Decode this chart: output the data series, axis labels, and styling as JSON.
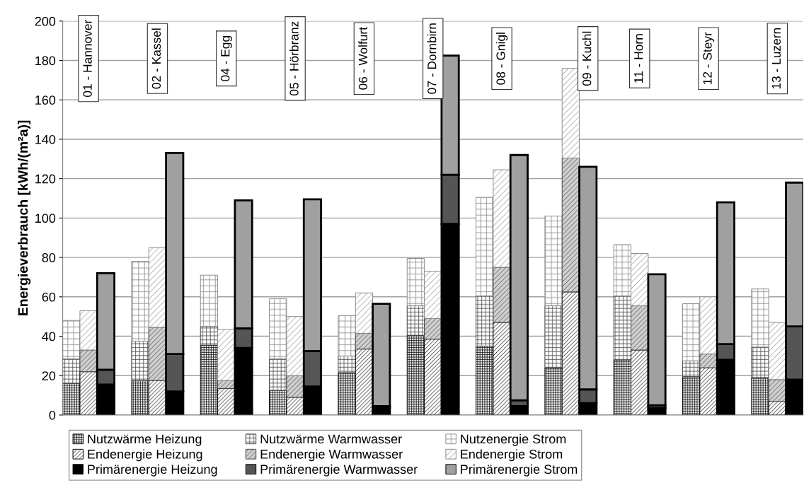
{
  "chart_data": {
    "type": "bar",
    "stacked": true,
    "ylabel": "Energieverbrauch [kWh/(m²a)]",
    "categories": [
      null,
      "01 - Hannover",
      null,
      null,
      null,
      "02 - Kassel",
      null,
      null,
      null,
      "04 - Egg",
      null,
      null,
      null,
      "05 - Hörbranz",
      null,
      null,
      null,
      "06 - Wolfurt",
      null,
      null,
      null,
      "07 - Dornbirn",
      null,
      null,
      null,
      "08 - Gnigl",
      null,
      null,
      null,
      null,
      "09 - Kuchl",
      null,
      null,
      "11 - Horn",
      null,
      null,
      null,
      "12 - Steyr",
      null,
      null,
      null,
      "13 - Luzern",
      null
    ],
    "ylim": [
      0,
      200
    ],
    "yticks": [
      0,
      20,
      40,
      60,
      80,
      100,
      120,
      140,
      160,
      180,
      200
    ],
    "grid": "y",
    "legend": "bottom",
    "series": [
      {
        "name": "Nutzwärme Heizung",
        "color": "#000000",
        "values": [
          16,
          null,
          null,
          null,
          17.5,
          null,
          null,
          null,
          35.5,
          null,
          null,
          null,
          12.5,
          null,
          null,
          null,
          21.5,
          null,
          null,
          null,
          40.5,
          null,
          null,
          null,
          35,
          null,
          null,
          null,
          24,
          null,
          null,
          null,
          28,
          null,
          null,
          null,
          19.5,
          null,
          null,
          null,
          19,
          null,
          null
        ]
      },
      {
        "name": "Nutzwärme Warmwasser",
        "color": "#444444",
        "values": [
          12.5,
          null,
          null,
          null,
          20,
          null,
          null,
          null,
          9.5,
          null,
          null,
          null,
          16,
          null,
          null,
          null,
          8.5,
          null,
          null,
          null,
          15,
          null,
          null,
          null,
          25.5,
          null,
          null,
          null,
          31.5,
          null,
          null,
          null,
          32.5,
          null,
          null,
          null,
          8,
          null,
          null,
          null,
          15.5,
          null,
          null
        ]
      },
      {
        "name": "Nutzenergie Strom",
        "color": "#888888",
        "values": [
          19.5,
          null,
          null,
          null,
          40.5,
          null,
          null,
          null,
          26,
          null,
          null,
          null,
          30.5,
          null,
          null,
          null,
          20.5,
          null,
          null,
          null,
          24,
          null,
          null,
          null,
          50,
          null,
          null,
          null,
          45.5,
          null,
          null,
          null,
          26,
          null,
          null,
          null,
          29,
          null,
          null,
          null,
          29.5,
          null,
          null
        ]
      },
      {
        "name": "Endenergie Heizung",
        "color": "#000000",
        "values": [
          null,
          22,
          null,
          null,
          null,
          17.5,
          null,
          null,
          null,
          13.5,
          null,
          null,
          null,
          9,
          null,
          null,
          null,
          33.5,
          null,
          null,
          null,
          38.5,
          null,
          null,
          null,
          47,
          null,
          null,
          null,
          62.5,
          null,
          null,
          null,
          33,
          null,
          null,
          null,
          24,
          null,
          null,
          null,
          7,
          null
        ]
      },
      {
        "name": "Endenergie Warmwasser",
        "color": "#444444",
        "values": [
          null,
          11,
          null,
          null,
          null,
          27,
          null,
          null,
          null,
          4,
          null,
          null,
          null,
          11,
          null,
          null,
          null,
          8,
          null,
          null,
          null,
          10.5,
          null,
          null,
          null,
          28,
          null,
          null,
          null,
          68,
          null,
          null,
          null,
          22.5,
          null,
          null,
          null,
          7,
          null,
          null,
          null,
          11,
          null
        ]
      },
      {
        "name": "Endenergie Strom",
        "color": "#888888",
        "values": [
          null,
          20,
          null,
          null,
          null,
          40.5,
          null,
          null,
          null,
          26,
          null,
          null,
          null,
          30,
          null,
          null,
          null,
          20.5,
          null,
          null,
          null,
          24,
          null,
          null,
          null,
          49.5,
          null,
          null,
          null,
          45.5,
          null,
          null,
          null,
          26.5,
          null,
          null,
          null,
          29,
          null,
          null,
          null,
          29,
          null
        ]
      },
      {
        "name": "Primärenergie Heizung",
        "color": "#000000",
        "values": [
          null,
          null,
          15.5,
          null,
          null,
          null,
          12,
          null,
          null,
          null,
          34,
          null,
          null,
          null,
          14.5,
          null,
          null,
          null,
          3.5,
          null,
          null,
          null,
          97,
          null,
          null,
          null,
          4.5,
          null,
          null,
          null,
          6,
          null,
          null,
          null,
          3.5,
          null,
          null,
          null,
          28,
          null,
          null,
          null,
          18
        ]
      },
      {
        "name": "Primärenergie Warmwasser",
        "color": "#555555",
        "values": [
          null,
          null,
          7.5,
          null,
          null,
          null,
          19,
          null,
          null,
          null,
          10,
          null,
          null,
          null,
          18,
          null,
          null,
          null,
          1,
          null,
          null,
          null,
          25,
          null,
          null,
          null,
          3,
          null,
          null,
          null,
          7,
          null,
          null,
          null,
          1.5,
          null,
          null,
          null,
          8,
          null,
          null,
          null,
          27
        ]
      },
      {
        "name": "Primärenergie Strom",
        "color": "#a0a0a0",
        "values": [
          null,
          null,
          49,
          null,
          null,
          null,
          102,
          null,
          null,
          null,
          65,
          null,
          null,
          null,
          77,
          null,
          null,
          null,
          52,
          null,
          null,
          null,
          60.5,
          null,
          null,
          null,
          124.5,
          null,
          null,
          null,
          113,
          null,
          null,
          null,
          66.5,
          null,
          null,
          null,
          72,
          null,
          null,
          null,
          73
        ]
      }
    ]
  }
}
